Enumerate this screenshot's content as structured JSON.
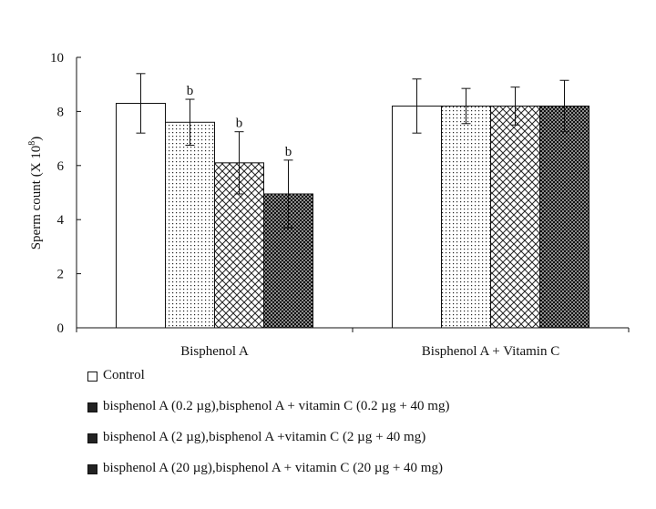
{
  "chart_data": {
    "type": "bar",
    "title": "",
    "xlabel": "",
    "ylabel": "Sperm count (X 10",
    "ylabel_sup": "8",
    "ylabel_close": ")",
    "ylim": [
      0,
      10
    ],
    "yticks": [
      "0",
      "2",
      "4",
      "6",
      "8",
      "10"
    ],
    "categories": [
      "Bisphenol A",
      "Bisphenol A + Vitamin C"
    ],
    "series": [
      {
        "name": "Control",
        "values": [
          8.3,
          8.2
        ],
        "errors": [
          1.1,
          1.0
        ],
        "fill": "white"
      },
      {
        "name": "bisphenol A (0.2 µg),bisphenol A + vitamin C (0.2 µg + 40 mg)",
        "values": [
          7.6,
          8.2
        ],
        "errors": [
          0.85,
          0.65
        ],
        "fill": "dots"
      },
      {
        "name": "bisphenol A (2 µg),bisphenol A +vitamin C (2 µg + 40 mg)",
        "values": [
          6.1,
          8.2
        ],
        "errors": [
          1.15,
          0.7
        ],
        "fill": "crosshatch"
      },
      {
        "name": "bisphenol A (20 µg),bisphenol A + vitamin C (20 µg + 40 mg)",
        "values": [
          4.95,
          8.2
        ],
        "errors": [
          1.25,
          0.95
        ],
        "fill": "dense"
      }
    ],
    "annotations": [
      {
        "category": 0,
        "series": 1,
        "text": "b"
      },
      {
        "category": 0,
        "series": 2,
        "text": "b"
      },
      {
        "category": 0,
        "series": 3,
        "text": "b"
      }
    ],
    "grid": false,
    "legend_position": "bottom"
  }
}
